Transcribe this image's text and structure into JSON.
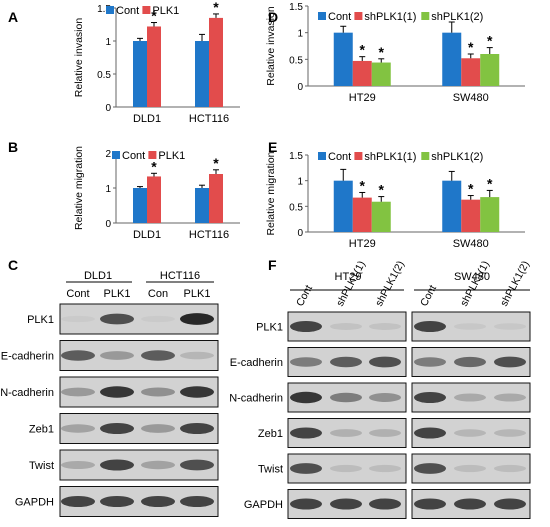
{
  "colors": {
    "cont": "#1f77c9",
    "plk1": "#e24c4c",
    "sh2": "#82c341",
    "band": "#3a3a3a",
    "blot_bg": "#d2d2d2"
  },
  "panel_letters": [
    "A",
    "B",
    "C",
    "D",
    "E",
    "F"
  ],
  "chart_data": [
    {
      "id": "A",
      "type": "bar",
      "ylabel": "Relative invasion",
      "yticks": [
        "0",
        "0.5",
        "1",
        "1.5"
      ],
      "ylim": [
        0,
        1.5
      ],
      "categories": [
        "DLD1",
        "HCT116"
      ],
      "legend": [
        "Cont",
        "PLK1"
      ],
      "series": [
        {
          "name": "Cont",
          "values": [
            1.0,
            1.0
          ],
          "err": [
            0.04,
            0.1
          ]
        },
        {
          "name": "PLK1",
          "values": [
            1.22,
            1.35
          ],
          "err": [
            0.06,
            0.06
          ]
        }
      ],
      "sig": [
        [
          "",
          "*"
        ],
        [
          "",
          "*"
        ]
      ]
    },
    {
      "id": "B",
      "type": "bar",
      "ylabel": "Relative migration",
      "yticks": [
        "0",
        "1",
        "2"
      ],
      "ylim": [
        0,
        2
      ],
      "categories": [
        "DLD1",
        "HCT116"
      ],
      "legend": [
        "Cont",
        "PLK1"
      ],
      "series": [
        {
          "name": "Cont",
          "values": [
            1.0,
            1.0
          ],
          "err": [
            0.04,
            0.08
          ]
        },
        {
          "name": "PLK1",
          "values": [
            1.33,
            1.4
          ],
          "err": [
            0.09,
            0.12
          ]
        }
      ],
      "sig": [
        [
          "",
          "*"
        ],
        [
          "",
          "*"
        ]
      ]
    },
    {
      "id": "D",
      "type": "bar",
      "ylabel": "Relative invasion",
      "yticks": [
        "0",
        "0.5",
        "1",
        "1.5"
      ],
      "ylim": [
        0,
        1.5
      ],
      "categories": [
        "HT29",
        "SW480"
      ],
      "legend": [
        "Cont",
        "shPLK1(1)",
        "shPLK1(2)"
      ],
      "series": [
        {
          "name": "Cont",
          "values": [
            1.0,
            1.0
          ],
          "err": [
            0.12,
            0.2
          ]
        },
        {
          "name": "shPLK1(1)",
          "values": [
            0.47,
            0.52
          ],
          "err": [
            0.08,
            0.08
          ]
        },
        {
          "name": "shPLK1(2)",
          "values": [
            0.44,
            0.6
          ],
          "err": [
            0.07,
            0.12
          ]
        }
      ],
      "sig": [
        [
          "",
          "*",
          "*"
        ],
        [
          "",
          "*",
          "*"
        ]
      ]
    },
    {
      "id": "E",
      "type": "bar",
      "ylabel": "Relative migration",
      "yticks": [
        "0",
        "0.5",
        "1",
        "1.5"
      ],
      "ylim": [
        0,
        1.5
      ],
      "categories": [
        "HT29",
        "SW480"
      ],
      "legend": [
        "Cont",
        "shPLK1(1)",
        "shPLK1(2)"
      ],
      "series": [
        {
          "name": "Cont",
          "values": [
            1.0,
            1.0
          ],
          "err": [
            0.22,
            0.18
          ]
        },
        {
          "name": "shPLK1(1)",
          "values": [
            0.67,
            0.63
          ],
          "err": [
            0.1,
            0.08
          ]
        },
        {
          "name": "shPLK1(2)",
          "values": [
            0.59,
            0.68
          ],
          "err": [
            0.1,
            0.13
          ]
        }
      ],
      "sig": [
        [
          "",
          "*",
          "*"
        ],
        [
          "",
          "*",
          "*"
        ]
      ]
    }
  ],
  "blot_C": {
    "groups": [
      "DLD1",
      "HCT116"
    ],
    "lanes": [
      "Cont",
      "PLK1",
      "Con",
      "PLK1"
    ],
    "rows": [
      {
        "label": "PLK1",
        "intensity": [
          0.05,
          0.8,
          0.05,
          0.95
        ]
      },
      {
        "label": "E-cadherin",
        "intensity": [
          0.75,
          0.45,
          0.75,
          0.25
        ]
      },
      {
        "label": "N-cadherin",
        "intensity": [
          0.45,
          0.9,
          0.5,
          0.9
        ]
      },
      {
        "label": "Zeb1",
        "intensity": [
          0.4,
          0.85,
          0.45,
          0.85
        ]
      },
      {
        "label": "Twist",
        "intensity": [
          0.35,
          0.85,
          0.4,
          0.8
        ]
      },
      {
        "label": "GAPDH",
        "intensity": [
          0.85,
          0.85,
          0.85,
          0.85
        ]
      }
    ]
  },
  "blot_F": {
    "groups": [
      "HT29",
      "SW480"
    ],
    "lanes": [
      "Cont",
      "shPLK1(1)",
      "shPLK1(2)",
      "Cont",
      "shPLK1(1)",
      "shPLK1(2)"
    ],
    "rows": [
      {
        "label": "PLK1",
        "intensity": [
          0.85,
          0.15,
          0.15,
          0.85,
          0.1,
          0.1
        ]
      },
      {
        "label": "E-cadherin",
        "intensity": [
          0.6,
          0.75,
          0.8,
          0.6,
          0.7,
          0.8
        ]
      },
      {
        "label": "N-cadherin",
        "intensity": [
          0.9,
          0.6,
          0.5,
          0.85,
          0.35,
          0.35
        ]
      },
      {
        "label": "Zeb1",
        "intensity": [
          0.85,
          0.3,
          0.3,
          0.85,
          0.25,
          0.25
        ]
      },
      {
        "label": "Twist",
        "intensity": [
          0.8,
          0.2,
          0.2,
          0.8,
          0.2,
          0.2
        ]
      },
      {
        "label": "GAPDH",
        "intensity": [
          0.85,
          0.85,
          0.85,
          0.85,
          0.85,
          0.85
        ]
      }
    ]
  }
}
